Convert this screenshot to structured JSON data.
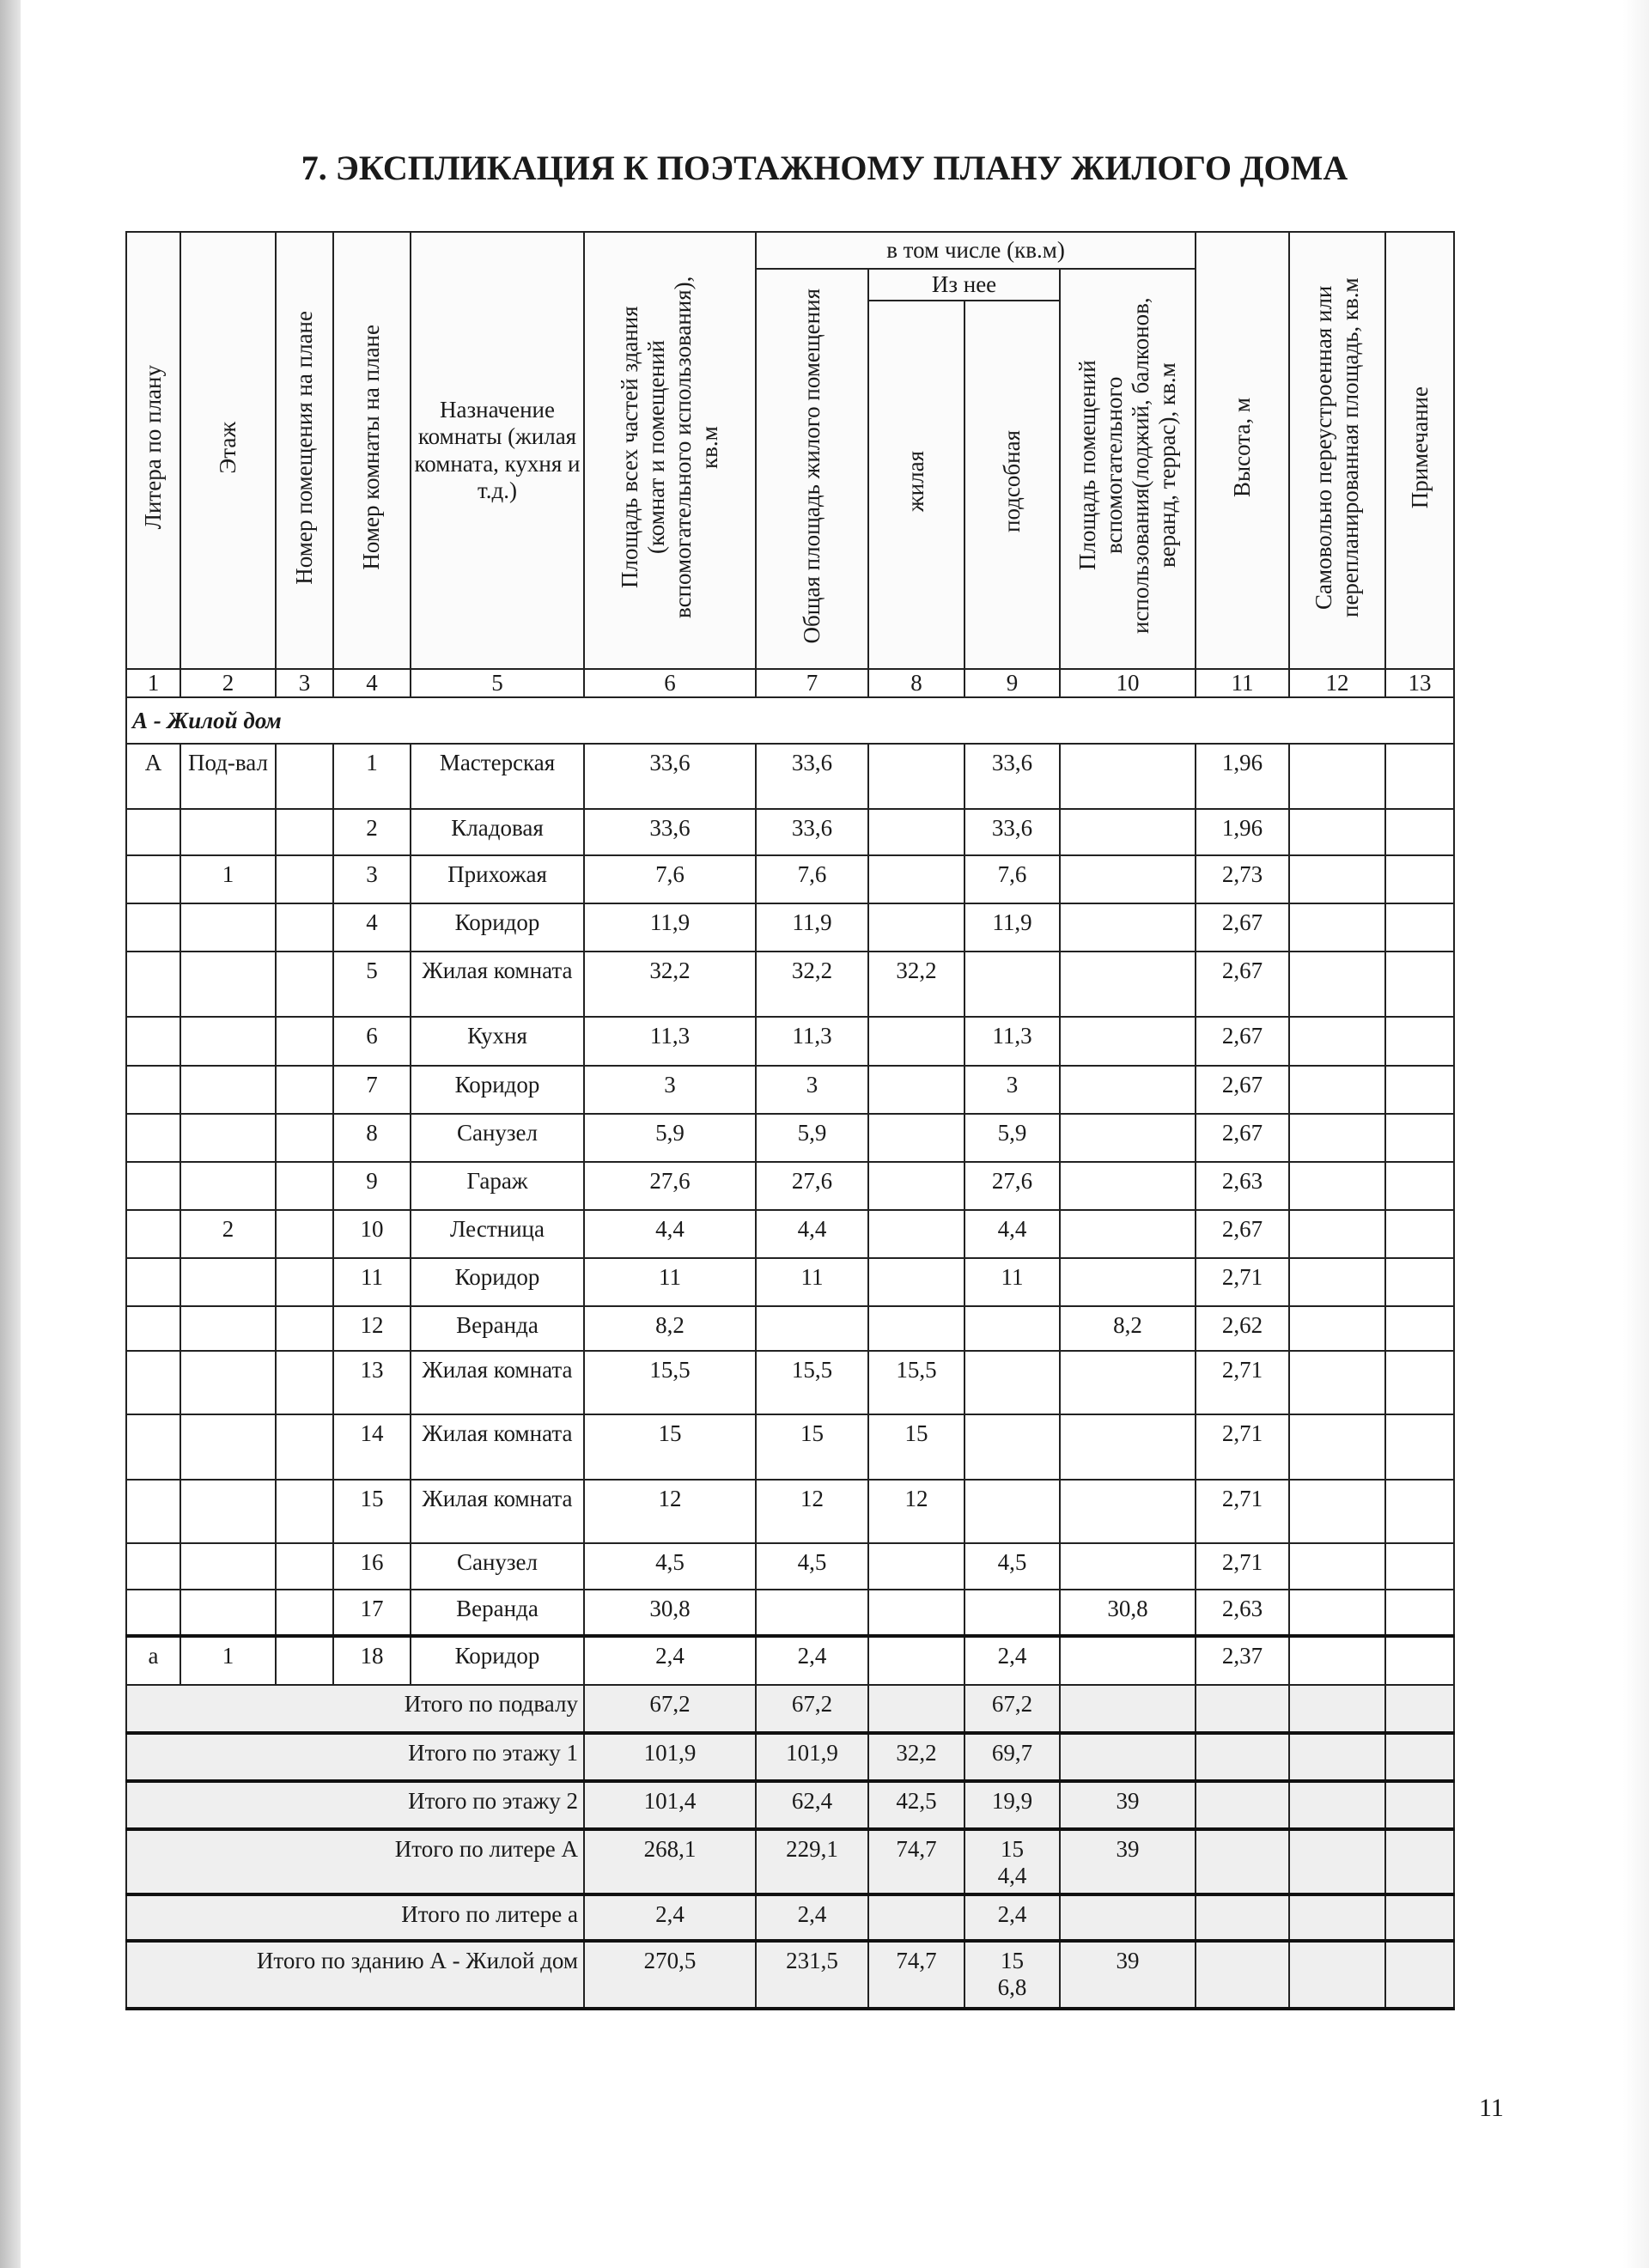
{
  "title": "7. ЭКСПЛИКАЦИЯ К ПОЭТАЖНОМУ ПЛАНУ ЖИЛОГО ДОМА",
  "header": {
    "c1": "Литера по плану",
    "c2": "Этаж",
    "c3": "Номер помещения на плане",
    "c4": "Номер комнаты на плане",
    "c5": "Назначение комнаты (жилая комната, кухня и т.д.)",
    "c6": "Площадь всех частей здания (комнат и помещений вспомогательного использования), кв.м",
    "group": "в том числе (кв.м)",
    "c7": "Общая площадь жилого помещения",
    "subgroup": "Из нее",
    "c8": "жилая",
    "c9": "подсобная",
    "c10": "Площадь помещений вспомогательного использования(лоджий, балконов, веранд, террас), кв.м",
    "c11": "Высота, м",
    "c12": "Самовольно переустроенная или перепланированная площадь, кв.м",
    "c13": "Примечание"
  },
  "column_numbers": [
    "1",
    "2",
    "3",
    "4",
    "5",
    "6",
    "7",
    "8",
    "9",
    "10",
    "11",
    "12",
    "13"
  ],
  "section": "А - Жилой дом",
  "rows": [
    [
      "А",
      "Под-вал",
      "",
      "1",
      "Мастерская",
      "33,6",
      "33,6",
      "",
      "33,6",
      "",
      "1,96",
      "",
      ""
    ],
    [
      "",
      "",
      "",
      "2",
      "Кладовая",
      "33,6",
      "33,6",
      "",
      "33,6",
      "",
      "1,96",
      "",
      ""
    ],
    [
      "",
      "1",
      "",
      "3",
      "Прихожая",
      "7,6",
      "7,6",
      "",
      "7,6",
      "",
      "2,73",
      "",
      ""
    ],
    [
      "",
      "",
      "",
      "4",
      "Коридор",
      "11,9",
      "11,9",
      "",
      "11,9",
      "",
      "2,67",
      "",
      ""
    ],
    [
      "",
      "",
      "",
      "5",
      "Жилая комната",
      "32,2",
      "32,2",
      "32,2",
      "",
      "",
      "2,67",
      "",
      ""
    ],
    [
      "",
      "",
      "",
      "6",
      "Кухня",
      "11,3",
      "11,3",
      "",
      "11,3",
      "",
      "2,67",
      "",
      ""
    ],
    [
      "",
      "",
      "",
      "7",
      "Коридор",
      "3",
      "3",
      "",
      "3",
      "",
      "2,67",
      "",
      ""
    ],
    [
      "",
      "",
      "",
      "8",
      "Санузел",
      "5,9",
      "5,9",
      "",
      "5,9",
      "",
      "2,67",
      "",
      ""
    ],
    [
      "",
      "",
      "",
      "9",
      "Гараж",
      "27,6",
      "27,6",
      "",
      "27,6",
      "",
      "2,63",
      "",
      ""
    ],
    [
      "",
      "2",
      "",
      "10",
      "Лестница",
      "4,4",
      "4,4",
      "",
      "4,4",
      "",
      "2,67",
      "",
      ""
    ],
    [
      "",
      "",
      "",
      "11",
      "Коридор",
      "11",
      "11",
      "",
      "11",
      "",
      "2,71",
      "",
      ""
    ],
    [
      "",
      "",
      "",
      "12",
      "Веранда",
      "8,2",
      "",
      "",
      "",
      "8,2",
      "2,62",
      "",
      ""
    ],
    [
      "",
      "",
      "",
      "13",
      "Жилая комната",
      "15,5",
      "15,5",
      "15,5",
      "",
      "",
      "2,71",
      "",
      ""
    ],
    [
      "",
      "",
      "",
      "14",
      "Жилая комната",
      "15",
      "15",
      "15",
      "",
      "",
      "2,71",
      "",
      ""
    ],
    [
      "",
      "",
      "",
      "15",
      "Жилая комната",
      "12",
      "12",
      "12",
      "",
      "",
      "2,71",
      "",
      ""
    ],
    [
      "",
      "",
      "",
      "16",
      "Санузел",
      "4,5",
      "4,5",
      "",
      "4,5",
      "",
      "2,71",
      "",
      ""
    ],
    [
      "",
      "",
      "",
      "17",
      "Веранда",
      "30,8",
      "",
      "",
      "",
      "30,8",
      "2,63",
      "",
      ""
    ],
    [
      "а",
      "1",
      "",
      "18",
      "Коридор",
      "2,4",
      "2,4",
      "",
      "2,4",
      "",
      "2,37",
      "",
      ""
    ]
  ],
  "totals": [
    [
      "Итого по подвалу",
      "67,2",
      "67,2",
      "",
      "67,2",
      "",
      "",
      "",
      ""
    ],
    [
      "Итого по этажу 1",
      "101,9",
      "101,9",
      "32,2",
      "69,7",
      "",
      "",
      "",
      ""
    ],
    [
      "Итого по этажу 2",
      "101,4",
      "62,4",
      "42,5",
      "19,9",
      "39",
      "",
      "",
      ""
    ],
    [
      "Итого по литере А",
      "268,1",
      "229,1",
      "74,7",
      "154,4",
      "39",
      "",
      "",
      ""
    ],
    [
      "Итого по литере а",
      "2,4",
      "2,4",
      "",
      "2,4",
      "",
      "",
      "",
      ""
    ],
    [
      "Итого по зданию А - Жилой дом",
      "270,5",
      "231,5",
      "74,7",
      "156,8",
      "39",
      "",
      "",
      ""
    ]
  ],
  "page_number": "11"
}
